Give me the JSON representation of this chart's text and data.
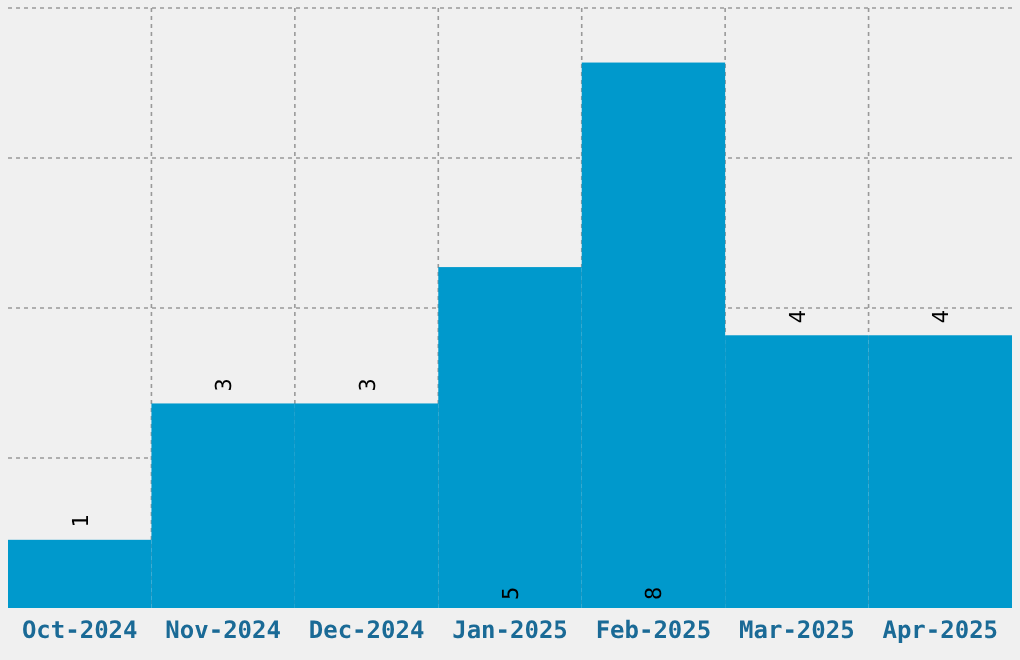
{
  "chart_data": {
    "type": "bar",
    "categories": [
      "Oct-2024",
      "Nov-2024",
      "Dec-2024",
      "Jan-2025",
      "Feb-2025",
      "Mar-2025",
      "Apr-2025"
    ],
    "values": [
      1,
      3,
      3,
      5,
      8,
      4,
      4
    ],
    "color": "#0099cc",
    "ylim": [
      0,
      8.8
    ],
    "yticks": [
      {
        "value": 2.2,
        "label": null
      },
      {
        "value": 4.4,
        "label": null
      },
      {
        "value": 6.6,
        "label": null
      },
      {
        "value": 8.8,
        "label": null
      }
    ],
    "grid": true,
    "tick_labels": "x",
    "data_labels": true
  }
}
